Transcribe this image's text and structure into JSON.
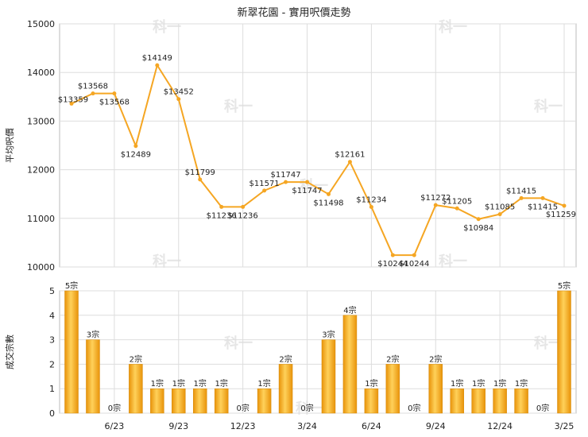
{
  "chart_data": [
    {
      "type": "line",
      "title": "新翠花園 - 實用呎價走勢",
      "ylabel": "平均呎價",
      "ylim": [
        10000,
        15000
      ],
      "yticks": [
        10000,
        11000,
        12000,
        13000,
        14000,
        15000
      ],
      "grid": true,
      "watermark": "科一",
      "line_color": "#f5a623",
      "values": [
        13359,
        13568,
        13568,
        12489,
        14149,
        13452,
        11799,
        11236,
        11236,
        11571,
        11747,
        11747,
        11498,
        12161,
        11234,
        10244,
        10244,
        11272,
        11205,
        10984,
        11085,
        11415,
        11415,
        11259
      ],
      "labels": [
        "$13359",
        "$13568",
        "$13568",
        "$12489",
        "$14149",
        "$13452",
        "$11799",
        "$11236",
        "$11236",
        "$11571",
        "$11747",
        "$11747",
        "$11498",
        "$12161",
        "$11234",
        "$10244",
        "$10244",
        "$11272",
        "$11205",
        "$10984",
        "$11085",
        "$11415",
        "$11415",
        "$11259"
      ]
    },
    {
      "type": "bar",
      "ylabel": "成交宗數",
      "ylim": [
        0,
        5
      ],
      "yticks": [
        0,
        1,
        2,
        3,
        4,
        5
      ],
      "grid": true,
      "bar_color": "#f5a623",
      "x_ticks": [
        "6/23",
        "9/23",
        "12/23",
        "3/24",
        "6/24",
        "9/24",
        "12/24",
        "3/25"
      ],
      "values": [
        5,
        3,
        0,
        2,
        1,
        1,
        1,
        1,
        0,
        1,
        2,
        0,
        3,
        4,
        1,
        2,
        0,
        2,
        1,
        1,
        1,
        1,
        0,
        5
      ],
      "labels": [
        "5宗",
        "3宗",
        "0宗",
        "2宗",
        "1宗",
        "1宗",
        "1宗",
        "1宗",
        "0宗",
        "1宗",
        "2宗",
        "0宗",
        "3宗",
        "4宗",
        "1宗",
        "2宗",
        "0宗",
        "2宗",
        "1宗",
        "1宗",
        "1宗",
        "1宗",
        "0宗",
        "5宗"
      ]
    }
  ]
}
